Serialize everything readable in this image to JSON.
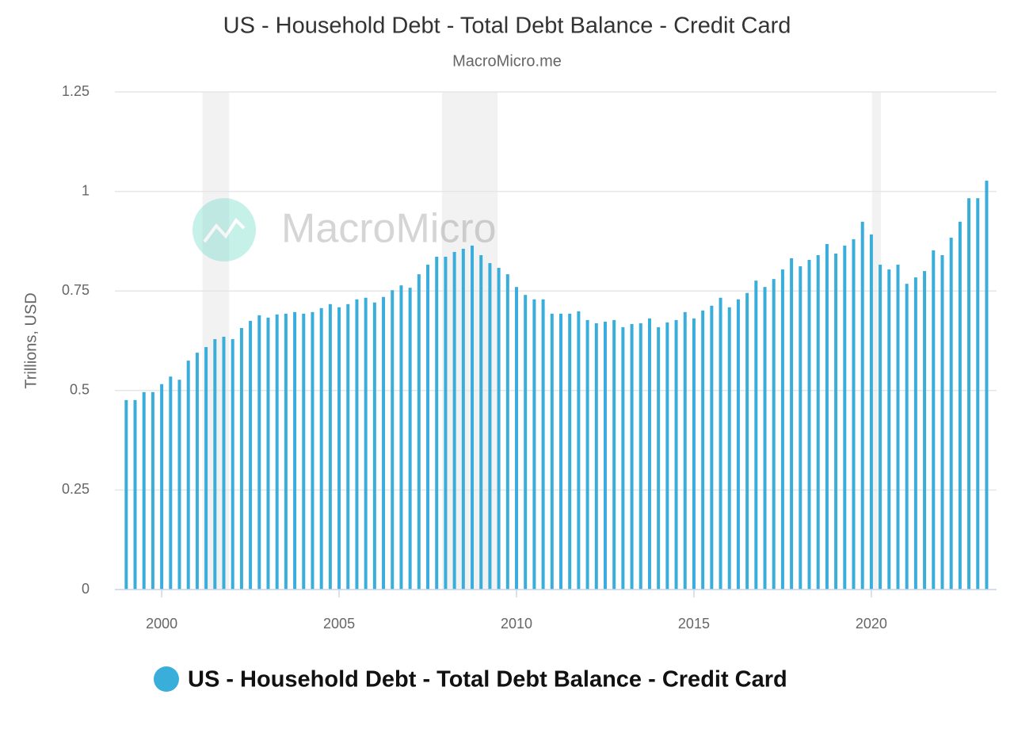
{
  "chart_data": {
    "type": "bar",
    "title": "US - Household Debt - Total Debt Balance - Credit Card",
    "subtitle": "MacroMicro.me",
    "watermark": "MacroMicro",
    "y_label": "Trillions, USD",
    "x": [
      1999,
      1999.25,
      1999.5,
      1999.75,
      2000,
      2000.25,
      2000.5,
      2000.75,
      2001,
      2001.25,
      2001.5,
      2001.75,
      2002,
      2002.25,
      2002.5,
      2002.75,
      2003,
      2003.25,
      2003.5,
      2003.75,
      2004,
      2004.25,
      2004.5,
      2004.75,
      2005,
      2005.25,
      2005.5,
      2005.75,
      2006,
      2006.25,
      2006.5,
      2006.75,
      2007,
      2007.25,
      2007.5,
      2007.75,
      2008,
      2008.25,
      2008.5,
      2008.75,
      2009,
      2009.25,
      2009.5,
      2009.75,
      2010,
      2010.25,
      2010.5,
      2010.75,
      2011,
      2011.25,
      2011.5,
      2011.75,
      2012,
      2012.25,
      2012.5,
      2012.75,
      2013,
      2013.25,
      2013.5,
      2013.75,
      2014,
      2014.25,
      2014.5,
      2014.75,
      2015,
      2015.25,
      2015.5,
      2015.75,
      2016,
      2016.25,
      2016.5,
      2016.75,
      2017,
      2017.25,
      2017.5,
      2017.75,
      2018,
      2018.25,
      2018.5,
      2018.75,
      2019,
      2019.25,
      2019.5,
      2019.75,
      2020,
      2020.25,
      2020.5,
      2020.75,
      2021,
      2021.25,
      2021.5,
      2021.75,
      2022,
      2022.25,
      2022.5,
      2022.75,
      2023,
      2023.25
    ],
    "series": [
      {
        "name": "US - Household Debt - Total Debt Balance - Credit Card",
        "color": "#3aaedb",
        "values": [
          0.476,
          0.476,
          0.496,
          0.496,
          0.516,
          0.535,
          0.527,
          0.575,
          0.595,
          0.609,
          0.629,
          0.635,
          0.629,
          0.657,
          0.675,
          0.689,
          0.683,
          0.691,
          0.693,
          0.697,
          0.693,
          0.697,
          0.707,
          0.717,
          0.709,
          0.717,
          0.729,
          0.733,
          0.721,
          0.735,
          0.752,
          0.764,
          0.758,
          0.792,
          0.816,
          0.836,
          0.836,
          0.848,
          0.856,
          0.864,
          0.84,
          0.82,
          0.808,
          0.792,
          0.76,
          0.74,
          0.729,
          0.729,
          0.693,
          0.693,
          0.693,
          0.699,
          0.677,
          0.669,
          0.673,
          0.677,
          0.659,
          0.667,
          0.669,
          0.681,
          0.659,
          0.671,
          0.677,
          0.697,
          0.681,
          0.701,
          0.713,
          0.733,
          0.709,
          0.729,
          0.745,
          0.776,
          0.76,
          0.78,
          0.804,
          0.832,
          0.812,
          0.828,
          0.84,
          0.868,
          0.844,
          0.864,
          0.88,
          0.924,
          0.892,
          0.816,
          0.804,
          0.816,
          0.768,
          0.784,
          0.8,
          0.852,
          0.84,
          0.884,
          0.924,
          0.983,
          0.983,
          1.027
        ]
      }
    ],
    "recessions": [
      [
        2001.15,
        2001.9
      ],
      [
        2007.9,
        2009.47
      ],
      [
        2020.02,
        2020.27
      ]
    ],
    "xlim": [
      1998.68,
      2023.53
    ],
    "xticks": [
      2000,
      2005,
      2010,
      2015,
      2020
    ],
    "ylim": [
      0,
      1.25
    ],
    "yticks": [
      0,
      0.25,
      0.5,
      0.75,
      1,
      1.25
    ],
    "grid": true
  }
}
